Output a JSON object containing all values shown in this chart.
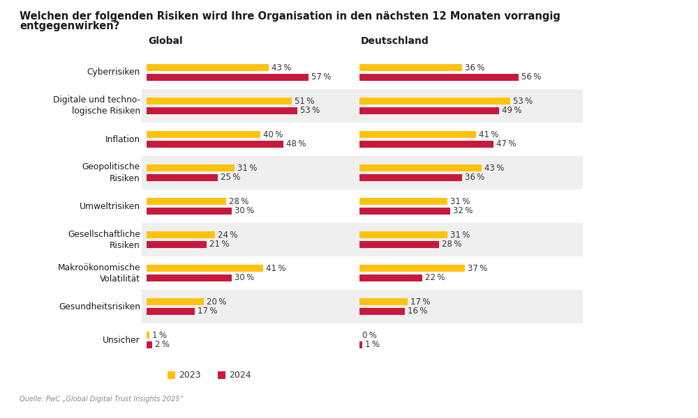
{
  "title_line1": "Welchen der folgenden Risiken wird Ihre Organisation in den nächsten 12 Monaten vorrangig",
  "title_line2": "entgegenwirken?",
  "source": "Quelle: PwC „Global Digital Trust Insights 2025“",
  "categories": [
    "Cyberrisiken",
    "Digitale und techno-\nlogische Risiken",
    "Inflation",
    "Geopolitische\nRisiken",
    "Umweltrisiken",
    "Gesellschaftliche\nRisiken",
    "Makroökonomische\nVolatilität",
    "Gesundheitsrisiken",
    "Unsicher"
  ],
  "global_2023": [
    43,
    51,
    40,
    31,
    28,
    24,
    41,
    20,
    1
  ],
  "global_2024": [
    57,
    53,
    48,
    25,
    30,
    21,
    30,
    17,
    2
  ],
  "deutschland_2023": [
    36,
    53,
    41,
    43,
    31,
    31,
    37,
    17,
    0
  ],
  "deutschland_2024": [
    56,
    49,
    47,
    36,
    32,
    28,
    22,
    16,
    1
  ],
  "color_2023": "#FFC20E",
  "color_2024": "#C8193C",
  "bg_stripe": "#EFEFEF",
  "bg_white": "#FFFFFF",
  "col_global_header": "Global",
  "col_deutschland_header": "Deutschland",
  "legend_2023": "2023",
  "legend_2024": "2024",
  "max_val": 65
}
